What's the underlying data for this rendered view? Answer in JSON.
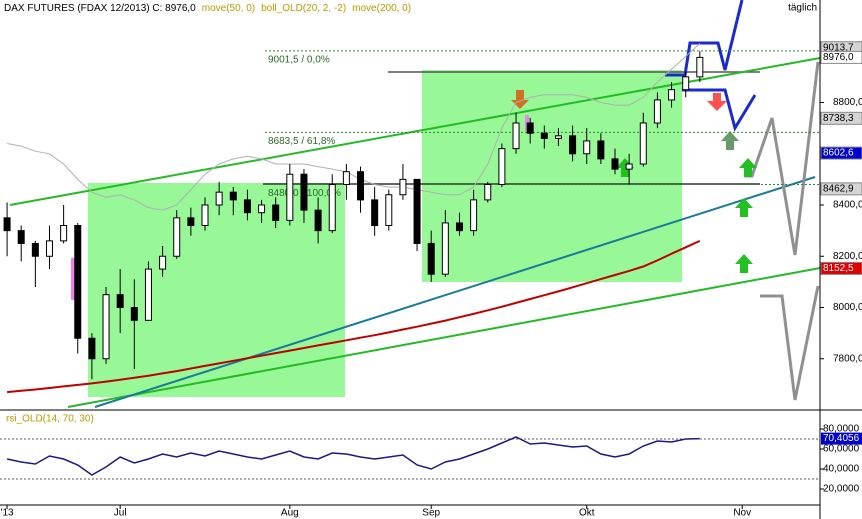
{
  "chart_data": [
    {
      "type": "candlestick",
      "title": "DAX FUTURES (FDAX 12/2013) C: 8976,0",
      "indicators": [
        "move(50, 0)",
        "boll_OLD(20, 2, -2)",
        "move(200, 0)"
      ],
      "indicator_color": "#b89a00",
      "period": "täglich",
      "categories": [
        "'13",
        null,
        null,
        null,
        null,
        null,
        null,
        null,
        "Jul",
        null,
        null,
        null,
        null,
        null,
        null,
        null,
        null,
        null,
        null,
        null,
        "Aug",
        null,
        null,
        null,
        null,
        null,
        null,
        null,
        null,
        null,
        "Sep",
        null,
        null,
        null,
        null,
        null,
        null,
        null,
        null,
        null,
        null,
        "Okt",
        null,
        null,
        null,
        null,
        null,
        null,
        null,
        null,
        null,
        null,
        "Nov",
        null,
        null,
        null,
        null,
        null
      ],
      "open": [
        8350,
        8300,
        8250,
        8200,
        8260,
        8320,
        7880,
        7800,
        8050,
        8000,
        7950,
        8150,
        8200,
        8350,
        8320,
        8400,
        8450,
        8420,
        8370,
        8400,
        8340,
        8520,
        8380,
        8300,
        8480,
        8530,
        8420,
        8320,
        8440,
        8500,
        8250,
        8130,
        8330,
        8300,
        8420,
        8480,
        8620,
        8720,
        8680,
        8660,
        8670,
        8600,
        8650,
        8580,
        8540,
        8560,
        8720,
        8810,
        8850,
        8900,
        null,
        null,
        null,
        null,
        null,
        null,
        null,
        null
      ],
      "high": [
        8410,
        8320,
        8260,
        8320,
        8400,
        8330,
        7900,
        8080,
        8150,
        8110,
        8180,
        8240,
        8380,
        8390,
        8430,
        8490,
        8470,
        8460,
        8420,
        8430,
        8560,
        8540,
        8430,
        8520,
        8560,
        8550,
        8470,
        8460,
        8560,
        8500,
        8300,
        8380,
        8370,
        8460,
        8490,
        8640,
        8760,
        8740,
        8710,
        8700,
        8710,
        8700,
        8680,
        8620,
        8600,
        8760,
        8840,
        8880,
        8920,
        9000,
        null,
        null,
        null,
        null,
        null,
        null,
        null,
        null
      ],
      "low": [
        8200,
        8180,
        8080,
        8150,
        8250,
        7820,
        7720,
        7780,
        7900,
        7760,
        7950,
        8120,
        8190,
        8280,
        8300,
        8360,
        8360,
        8340,
        8330,
        8310,
        8320,
        8330,
        8250,
        8290,
        8420,
        8370,
        8280,
        8300,
        8420,
        8220,
        8100,
        8120,
        8280,
        8280,
        8410,
        8470,
        8600,
        8640,
        8620,
        8630,
        8570,
        8560,
        8560,
        8520,
        8480,
        8550,
        8700,
        8780,
        8820,
        8880,
        null,
        null,
        null,
        null,
        null,
        null,
        null,
        null
      ],
      "close": [
        8300,
        8250,
        8200,
        8260,
        8320,
        7880,
        7800,
        8050,
        8000,
        7950,
        8150,
        8200,
        8350,
        8320,
        8400,
        8450,
        8420,
        8370,
        8400,
        8340,
        8520,
        8380,
        8300,
        8480,
        8530,
        8420,
        8320,
        8440,
        8500,
        8250,
        8130,
        8330,
        8300,
        8420,
        8480,
        8620,
        8720,
        8680,
        8660,
        8670,
        8600,
        8650,
        8580,
        8540,
        8560,
        8720,
        8810,
        8850,
        8900,
        8976,
        null,
        null,
        null,
        null,
        null,
        null,
        null,
        null
      ],
      "series": [
        {
          "color": "#b0b0b0",
          "values": [
            8640,
            8630,
            8610,
            8600,
            8560,
            8500,
            8450,
            8430,
            8440,
            8420,
            8390,
            8380,
            8400,
            8460,
            8520,
            8560,
            8580,
            8590,
            8580,
            8560,
            8560,
            8560,
            8550,
            8540,
            8530,
            8500,
            8480,
            8470,
            8470,
            8460,
            8450,
            8440,
            8440,
            8470,
            8560,
            8700,
            8800,
            8820,
            8830,
            8830,
            8830,
            8820,
            8800,
            8790,
            8790,
            8820,
            8880,
            8930,
            8980,
            9030,
            null,
            null,
            null,
            null,
            null,
            null,
            null,
            null
          ]
        },
        {
          "color": "#c00000",
          "values": [
            7670,
            7675,
            7680,
            7686,
            7692,
            7698,
            7704,
            7711,
            7718,
            7726,
            7734,
            7743,
            7752,
            7762,
            7772,
            7782,
            7792,
            7802,
            7812,
            7822,
            7832,
            7842,
            7852,
            7862,
            7872,
            7882,
            7892,
            7903,
            7914,
            7925,
            7937,
            7949,
            7962,
            7975,
            7989,
            8003,
            8018,
            8033,
            8048,
            8063,
            8079,
            8095,
            8111,
            8127,
            8143,
            8160,
            8184,
            8210,
            8235,
            8260,
            null,
            null,
            null,
            null,
            null,
            null,
            null,
            null
          ]
        }
      ],
      "ylim": [
        7600,
        9200
      ],
      "yticks": [
        {
          "value": 7800,
          "label": "7800,0"
        },
        {
          "value": 8000,
          "label": "8000,0"
        },
        {
          "value": 8200,
          "label": "8200,0"
        },
        {
          "value": 8400,
          "label": "8400,0"
        },
        {
          "value": 8800,
          "label": "8800,0"
        }
      ],
      "fib_levels": [
        {
          "value": 9001.5,
          "label": "9001,5 / 0,0%"
        },
        {
          "value": 8683.5,
          "label": "8683,5 / 61,8%"
        },
        {
          "value": 8480,
          "label": "8480,0 / 100,0%"
        }
      ],
      "price_markers": [
        {
          "value": 9013.7,
          "label": "9013,7",
          "color": "#d4d4d4",
          "text_color": "#000000"
        },
        {
          "value": 8976,
          "label": "8976,0",
          "color": "#ffffff",
          "text_color": "#000000"
        },
        {
          "value": 8738.3,
          "label": "8738,3",
          "color": "#d4d4d4",
          "text_color": "#000000"
        },
        {
          "value": 8602.6,
          "label": "8602,6",
          "color": "#0000d0",
          "text_color": "#ffffff"
        },
        {
          "value": 8462.9,
          "label": "8462,9",
          "color": "#d4d4d4",
          "text_color": "#000000"
        },
        {
          "value": 8152.5,
          "label": "8152,5",
          "color": "#e00000",
          "text_color": "#ffffff"
        }
      ]
    },
    {
      "type": "line",
      "title": "rsi_OLD(14, 70, 30)",
      "color": "#1a1a80",
      "values": [
        50,
        47,
        45,
        53,
        50,
        44,
        34,
        42,
        52,
        46,
        50,
        55,
        52,
        56,
        53,
        58,
        55,
        52,
        50,
        54,
        58,
        52,
        50,
        56,
        55,
        52,
        50,
        52,
        54,
        44,
        40,
        47,
        50,
        55,
        60,
        66,
        72,
        65,
        66,
        64,
        62,
        63,
        55,
        52,
        55,
        63,
        68,
        67,
        70,
        70.4056,
        null,
        null,
        null,
        null,
        null,
        null,
        null,
        null
      ],
      "ylim": [
        4,
        96
      ],
      "yticks": [
        {
          "value": 20,
          "label": "20,0000"
        },
        {
          "value": 40,
          "label": "40,0000"
        },
        {
          "value": 60,
          "label": "60,0000"
        },
        {
          "value": 80,
          "label": "80,0000"
        }
      ],
      "levels": [
        70,
        30
      ],
      "last_value": {
        "value": 70.4056,
        "label": "70,4056",
        "color": "#0000d0"
      }
    }
  ]
}
